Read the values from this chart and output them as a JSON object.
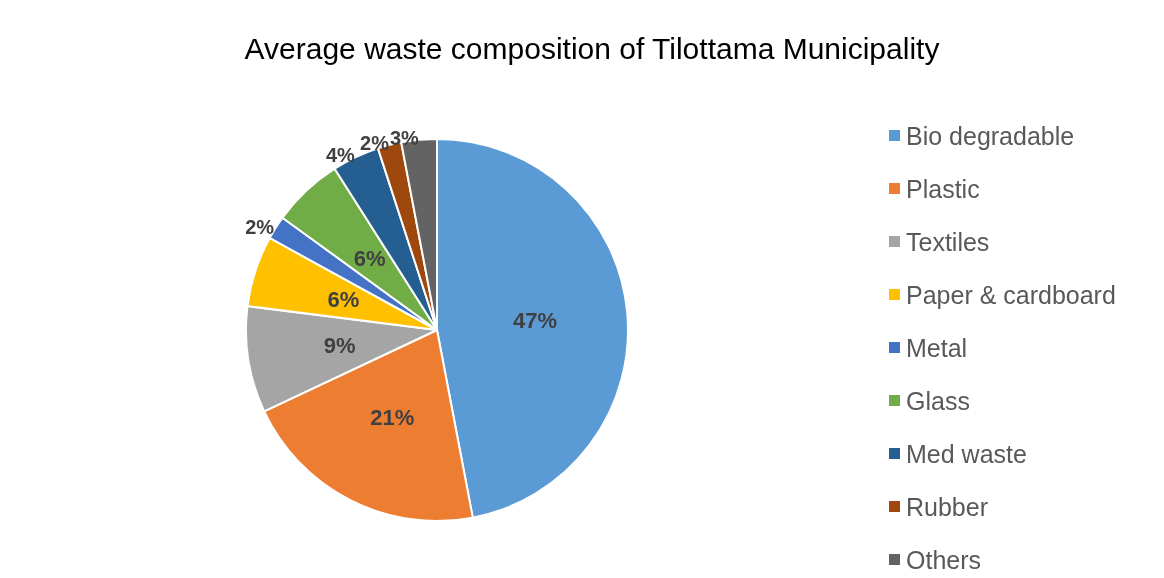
{
  "chart_data": {
    "type": "pie",
    "title": "Average waste composition of Tilottama Municipality",
    "categories": [
      "Bio degradable",
      "Plastic",
      "Textiles",
      "Paper & cardboard",
      "Metal",
      "Glass",
      "Med waste",
      "Rubber",
      "Others"
    ],
    "values": [
      47,
      21,
      9,
      6,
      2,
      6,
      4,
      2,
      3
    ],
    "value_labels": [
      "47%",
      "21%",
      "9%",
      "6%",
      "2%",
      "6%",
      "4%",
      "2%",
      "3%"
    ],
    "colors": [
      "#5b9bd5",
      "#ed7d31",
      "#a5a5a5",
      "#ffc000",
      "#4472c4",
      "#70ad47",
      "#255e91",
      "#9e480e",
      "#636363"
    ],
    "legend": "right"
  }
}
